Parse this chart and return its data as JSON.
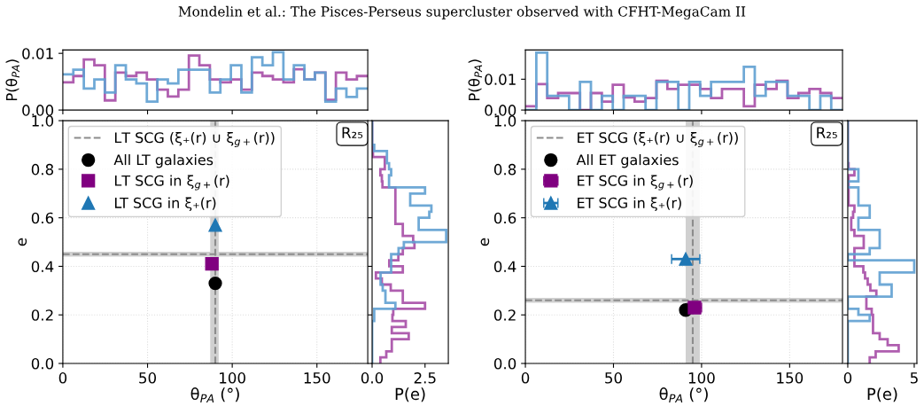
{
  "chart_data": [
    {
      "type": "histogram",
      "title": "Mondelin et al.: The Pisces-Perseus supercluster observed with CFHT-MegaCam II",
      "ylabel": "P(θ$_{PA}$)",
      "tick_labels": "y",
      "xlim": [
        0,
        180
      ],
      "xticks": [
        0,
        50,
        100,
        150
      ],
      "ylim": [
        0,
        0.0106
      ],
      "yticks": [
        {
          "value": 0,
          "label": "0.00"
        },
        {
          "value": 0.01,
          "label": "0.01"
        }
      ],
      "bins": [
        0,
        6.2,
        12.4,
        18.6,
        24.8,
        31,
        37.2,
        43.4,
        49.6,
        55.8,
        62,
        68.2,
        74.4,
        80.6,
        86.8,
        93,
        99.2,
        105.4,
        111.6,
        117.8,
        124,
        130.2,
        136.4,
        142.6,
        148.8,
        155,
        161.2,
        167.4,
        173.6,
        180
      ],
      "series": [
        {
          "color": "#a64ca6",
          "values": [
            0.0049,
            0.006,
            0.0089,
            0.0079,
            0.0017,
            0.0066,
            0.006,
            0.0066,
            0.0054,
            0.0036,
            0.0024,
            0.0036,
            0.0096,
            0.0079,
            0.0054,
            0.0049,
            0.0054,
            0.0036,
            0.0066,
            0.006,
            0.0054,
            0.0049,
            0.0072,
            0.0054,
            0.0066,
            0.0018,
            0.0066,
            0.0054,
            0.006
          ]
        },
        {
          "color": "#5fa0d2",
          "values": [
            0.0063,
            0.0071,
            0.0038,
            0.0054,
            0.0031,
            0.0079,
            0.0054,
            0.0047,
            0.0015,
            0.0054,
            0.0047,
            0.0071,
            0.0071,
            0.0071,
            0.0031,
            0.0054,
            0.0079,
            0.0031,
            0.0093,
            0.0079,
            0.0102,
            0.0054,
            0.0079,
            0.0054,
            0.0066,
            0.0015,
            0.0038,
            0.0023,
            0.0038
          ]
        }
      ]
    },
    {
      "type": "histogram",
      "ylabel": "P(θ$_{PA}$)",
      "tick_labels": "y",
      "xlim": [
        0,
        180
      ],
      "xticks": [
        0,
        50,
        100,
        150
      ],
      "ylim": [
        0,
        0.0195
      ],
      "yticks": [
        {
          "value": 0,
          "label": "0.00"
        },
        {
          "value": 0.01,
          "label": "0.01"
        }
      ],
      "bins": [
        0,
        6.2,
        12.4,
        18.6,
        24.8,
        31,
        37.2,
        43.4,
        49.6,
        55.8,
        62,
        68.2,
        74.4,
        80.6,
        86.8,
        93,
        99.2,
        105.4,
        111.6,
        117.8,
        124,
        130.2,
        136.4,
        142.6,
        148.8,
        155,
        161.2,
        167.4,
        173.6,
        180
      ],
      "series": [
        {
          "color": "#a64ca6",
          "values": [
            0.0012,
            0.0084,
            0.0039,
            0.0055,
            0.0055,
            0,
            0.0055,
            0.0027,
            0.0082,
            0.0041,
            0.0027,
            0.0039,
            0.0095,
            0.0068,
            0.0082,
            0.0082,
            0.0068,
            0.0039,
            0.0068,
            0.0068,
            0.0012,
            0.0082,
            0.0068,
            0.0095,
            0.0039,
            0.0055,
            0.0068,
            0.0055,
            0.0039
          ]
        },
        {
          "color": "#5fa0d2",
          "values": [
            0,
            0.0186,
            0.0046,
            0.0046,
            0,
            0.0091,
            0,
            0.0046,
            0,
            0.0046,
            0.0046,
            0,
            0.0091,
            0.0091,
            0,
            0.0091,
            0.0046,
            0.0091,
            0.0091,
            0.0091,
            0.014,
            0.0046,
            0.0091,
            0.0091,
            0.0046,
            0.0046,
            0,
            0.0046,
            0
          ]
        }
      ]
    },
    {
      "type": "scatter",
      "xlabel": "θ$_{PA}$ (°)",
      "ylabel": "e",
      "xlim": [
        0,
        180
      ],
      "xticks": [
        0,
        50,
        100,
        150
      ],
      "ylim": [
        0,
        1
      ],
      "yticks": [
        {
          "value": 0,
          "label": "0.0"
        },
        {
          "value": 0.2,
          "label": "0.2"
        },
        {
          "value": 0.4,
          "label": "0.4"
        },
        {
          "value": 0.6,
          "label": "0.6"
        },
        {
          "value": 0.8,
          "label": "0.8"
        },
        {
          "value": 1,
          "label": "1.0"
        }
      ],
      "grid": true,
      "legend": "top left",
      "annotations": [
        "R₂₅"
      ],
      "ref_lines": [
        {
          "axis": "y",
          "value": 0.45,
          "label": "LT SCG (ξ₊(r) ∪ ξ$_{g+}$(r))",
          "color": "#8c8c8c",
          "line_style": "dashed"
        },
        {
          "axis": "x",
          "value": 90,
          "color": "#8c8c8c",
          "line_style": "dashed"
        }
      ],
      "bands": [
        {
          "axis": "y",
          "from": 0.44,
          "to": 0.46,
          "color": "#d0d0d0"
        },
        {
          "axis": "x",
          "from": 87,
          "to": 92,
          "color": "#d0d0d0"
        }
      ],
      "series": [
        {
          "name": "All LT galaxies",
          "color": "#000000",
          "marker": "circle",
          "x": [
            90
          ],
          "values": [
            0.33
          ]
        },
        {
          "name": "LT SCG in ξ$_{g+}$(r)",
          "color": "#800080",
          "marker": "square",
          "x": [
            88
          ],
          "values": [
            0.41
          ]
        },
        {
          "name": "LT SCG in ξ₊(r)",
          "color": "#1f77b4",
          "marker": "triangle",
          "x": [
            90
          ],
          "values": [
            0.57
          ]
        }
      ]
    },
    {
      "type": "histogram",
      "orientation": "horizontal",
      "xlabel": "P(e)",
      "tick_labels": "x",
      "xlim": [
        0,
        3.6
      ],
      "xticks": [
        {
          "value": 0,
          "label": "0.0"
        },
        {
          "value": 2.5,
          "label": "2.5"
        }
      ],
      "ylim": [
        0,
        1
      ],
      "yticks": [
        0,
        0.2,
        0.4,
        0.6,
        0.8,
        1
      ],
      "bins": [
        0,
        0.025,
        0.05,
        0.075,
        0.1,
        0.125,
        0.15,
        0.175,
        0.2,
        0.225,
        0.25,
        0.275,
        0.3,
        0.325,
        0.35,
        0.375,
        0.4,
        0.425,
        0.45,
        0.475,
        0.5,
        0.525,
        0.55,
        0.575,
        0.6,
        0.625,
        0.65,
        0.675,
        0.7,
        0.725,
        0.75,
        0.775,
        0.8,
        0.825,
        0.85,
        0.875,
        0.9,
        0.925,
        0.95,
        0.975,
        1
      ],
      "series": [
        {
          "color": "#a64ca6",
          "values": [
            0.39,
            0.67,
            0.93,
            0.93,
            1.73,
            0.93,
            1.59,
            0.96,
            1.0,
            2.5,
            1.45,
            1.45,
            0.88,
            0.46,
            0.18,
            1.45,
            0.81,
            1.24,
            1.45,
            2.0,
            1.94,
            1.45,
            1.45,
            1.1,
            1.1,
            1.1,
            1.1,
            1.1,
            1.1,
            0.49,
            0.46,
            0.39,
            0.6,
            0.6,
            0.04,
            0.04,
            0,
            0,
            0,
            0
          ]
        },
        {
          "color": "#5fa0d2",
          "values": [
            0,
            0,
            0,
            0,
            0,
            0,
            0,
            0.1,
            0.1,
            1.1,
            0.63,
            0.63,
            0.5,
            0.4,
            0.4,
            0.9,
            0.9,
            0.9,
            1.25,
            1.5,
            3.5,
            3.5,
            2.2,
            2.2,
            2.7,
            2.8,
            1.8,
            1.8,
            2.5,
            0.8,
            0.8,
            0.9,
            0.8,
            0.7,
            0.7,
            0.1,
            0,
            0,
            0,
            0
          ]
        }
      ]
    },
    {
      "type": "scatter",
      "xlabel": "θ$_{PA}$ (°)",
      "ylabel": "e",
      "xlim": [
        0,
        180
      ],
      "xticks": [
        0,
        50,
        100,
        150
      ],
      "ylim": [
        0,
        1
      ],
      "yticks": [
        {
          "value": 0,
          "label": "0.0"
        },
        {
          "value": 0.2,
          "label": "0.2"
        },
        {
          "value": 0.4,
          "label": "0.4"
        },
        {
          "value": 0.6,
          "label": "0.6"
        },
        {
          "value": 0.8,
          "label": "0.8"
        },
        {
          "value": 1,
          "label": "1.0"
        }
      ],
      "grid": true,
      "legend": "top left",
      "annotations": [
        "R₂₅"
      ],
      "ref_lines": [
        {
          "axis": "y",
          "value": 0.26,
          "label": "ET SCG (ξ₊(r) ∪ ξ$_{g+}$(r))",
          "color": "#8c8c8c",
          "line_style": "dashed"
        },
        {
          "axis": "x",
          "value": 95,
          "color": "#8c8c8c",
          "line_style": "dashed"
        }
      ],
      "bands": [
        {
          "axis": "y",
          "from": 0.25,
          "to": 0.27,
          "color": "#d0d0d0"
        },
        {
          "axis": "x",
          "from": 91,
          "to": 99,
          "color": "#d0d0d0"
        }
      ],
      "series": [
        {
          "name": "All ET galaxies",
          "color": "#000000",
          "marker": "circle",
          "x": [
            91
          ],
          "values": [
            0.22
          ]
        },
        {
          "name": "ET SCG in ξ$_{g+}$(r)",
          "color": "#800080",
          "marker": "square",
          "x": [
            96
          ],
          "values": [
            0.23
          ],
          "xerrors": [
            4
          ]
        },
        {
          "name": "ET SCG in ξ₊(r)",
          "color": "#1f77b4",
          "marker": "triangle",
          "x": [
            91
          ],
          "values": [
            0.43
          ],
          "xerrors": [
            8
          ]
        }
      ]
    },
    {
      "type": "histogram",
      "orientation": "horizontal",
      "xlabel": "P(e)",
      "tick_labels": "x",
      "xlim": [
        0,
        5.2
      ],
      "xticks": [
        0,
        5
      ],
      "ylim": [
        0,
        1
      ],
      "yticks": [
        0,
        0.2,
        0.4,
        0.6,
        0.8,
        1
      ],
      "bins": [
        0,
        0.025,
        0.05,
        0.075,
        0.1,
        0.125,
        0.15,
        0.175,
        0.2,
        0.225,
        0.25,
        0.275,
        0.3,
        0.325,
        0.35,
        0.375,
        0.4,
        0.425,
        0.45,
        0.475,
        0.5,
        0.525,
        0.55,
        0.575,
        0.6,
        0.625,
        0.65,
        0.675,
        0.7,
        0.725,
        0.75,
        0.775,
        0.8,
        0.825,
        0.85,
        0.875,
        0.9,
        0.925,
        0.95,
        0.975,
        1
      ],
      "series": [
        {
          "color": "#a64ca6",
          "values": [
            1.65,
            2.1,
            3.83,
            3.0,
            2.4,
            1.9,
            1.9,
            1.9,
            1.8,
            1.4,
            1.4,
            2.15,
            1.7,
            1.5,
            1.3,
            1.17,
            0.5,
            0.5,
            0.5,
            1.2,
            1.2,
            0.5,
            0.26,
            0.26,
            0.4,
            0.5,
            0.06,
            0.06,
            0.06,
            0.06,
            0.06,
            0.5,
            0.06,
            0,
            0,
            0,
            0,
            0,
            0,
            0
          ]
        },
        {
          "color": "#5fa0d2",
          "values": [
            0,
            0,
            0,
            0,
            0,
            0,
            0,
            1.65,
            0.8,
            0,
            0,
            3.3,
            3.3,
            2.4,
            2.4,
            5.0,
            5.0,
            0,
            1.65,
            2.4,
            2.4,
            2.4,
            0.8,
            0.8,
            1.65,
            1.65,
            0.8,
            0.8,
            0.8,
            0,
            0.8,
            0.8,
            0,
            0,
            0,
            0,
            0,
            0,
            0,
            0
          ]
        }
      ]
    }
  ]
}
